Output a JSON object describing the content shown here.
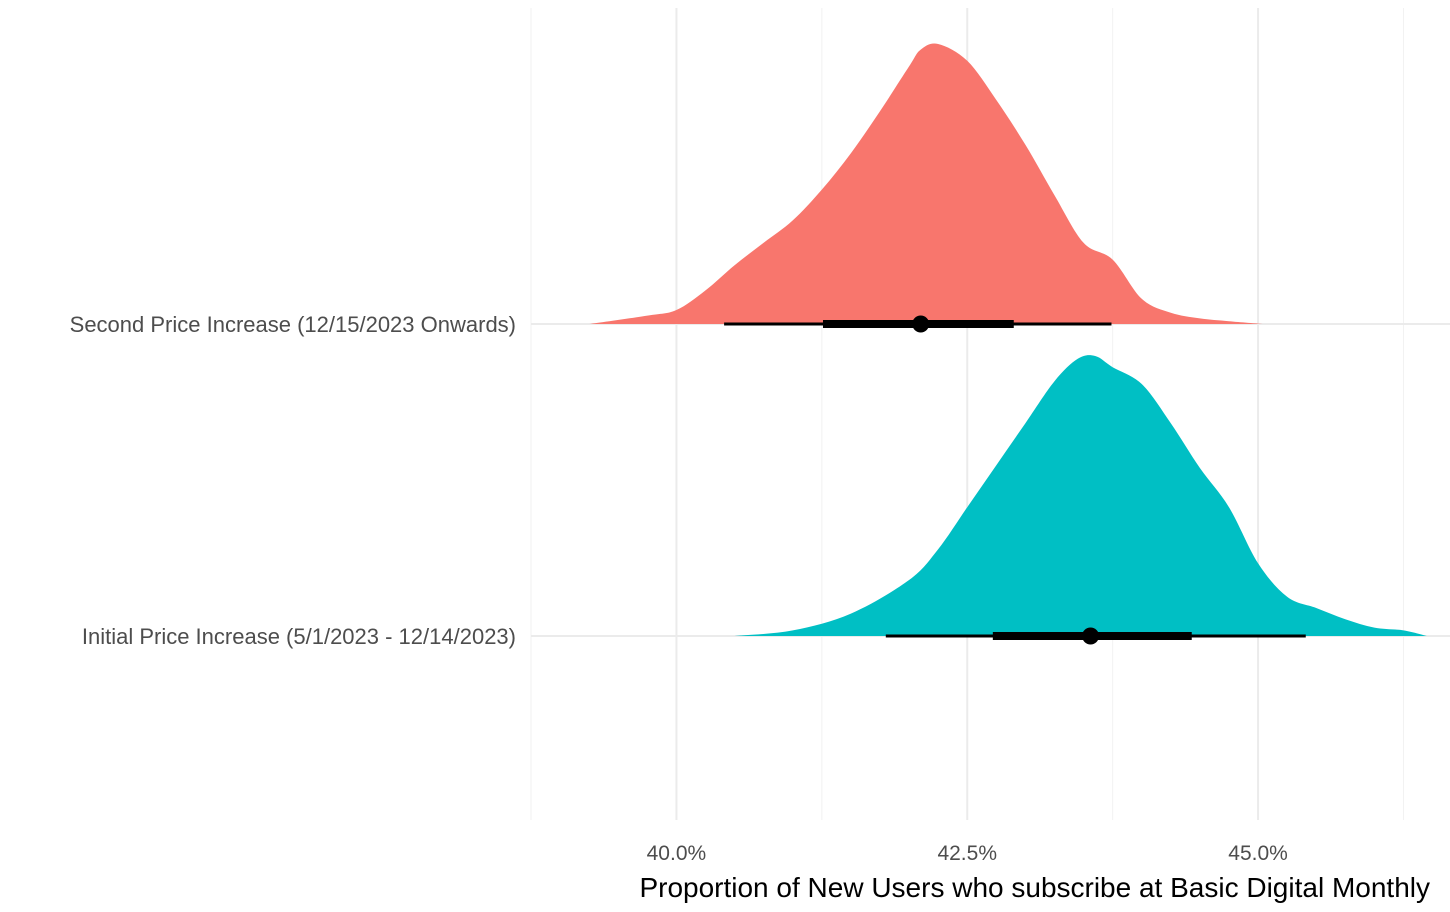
{
  "chart_data": {
    "type": "density",
    "xlabel": "Proportion of New Users who subscribe at Basic Digital Monthly",
    "ylabel": "",
    "xlim": [
      0.3875,
      0.4665
    ],
    "x_ticks": [
      0.4,
      0.425,
      0.45
    ],
    "x_tick_labels": [
      "40.0%",
      "42.5%",
      "45.0%"
    ],
    "x_minor_ticks": [
      0.3875,
      0.4125,
      0.4375,
      0.4625
    ],
    "grid": true,
    "legend": "none",
    "categories": [
      "Initial Price Increase (5/1/2023 - 12/14/2023)",
      "Second Price Increase (12/15/2023 Onwards)"
    ],
    "series": [
      {
        "category": "Second Price Increase (12/15/2023 Onwards)",
        "color": "#F8766D",
        "point": 0.421,
        "interval_66": [
          0.4126,
          0.429
        ],
        "interval_95": [
          0.4041,
          0.4374
        ],
        "density": [
          [
            0.3925,
            0.0
          ],
          [
            0.3975,
            0.03
          ],
          [
            0.4,
            0.05
          ],
          [
            0.4025,
            0.12
          ],
          [
            0.405,
            0.21
          ],
          [
            0.4075,
            0.29
          ],
          [
            0.41,
            0.37
          ],
          [
            0.4125,
            0.48
          ],
          [
            0.415,
            0.61
          ],
          [
            0.4175,
            0.76
          ],
          [
            0.42,
            0.92
          ],
          [
            0.421,
            0.98
          ],
          [
            0.4225,
            1.0
          ],
          [
            0.425,
            0.94
          ],
          [
            0.4275,
            0.8
          ],
          [
            0.43,
            0.64
          ],
          [
            0.4325,
            0.46
          ],
          [
            0.435,
            0.29
          ],
          [
            0.4375,
            0.23
          ],
          [
            0.44,
            0.09
          ],
          [
            0.4425,
            0.04
          ],
          [
            0.445,
            0.02
          ],
          [
            0.4475,
            0.01
          ],
          [
            0.4505,
            0.0
          ]
        ]
      },
      {
        "category": "Initial Price Increase (5/1/2023 - 12/14/2023)",
        "color": "#00BFC4",
        "point": 0.4356,
        "interval_66": [
          0.4272,
          0.4443
        ],
        "interval_95": [
          0.418,
          0.4541
        ],
        "density": [
          [
            0.405,
            0.0
          ],
          [
            0.41,
            0.02
          ],
          [
            0.415,
            0.08
          ],
          [
            0.42,
            0.2
          ],
          [
            0.4225,
            0.31
          ],
          [
            0.425,
            0.46
          ],
          [
            0.4275,
            0.61
          ],
          [
            0.43,
            0.76
          ],
          [
            0.4325,
            0.91
          ],
          [
            0.4345,
            0.99
          ],
          [
            0.436,
            1.0
          ],
          [
            0.4375,
            0.96
          ],
          [
            0.44,
            0.9
          ],
          [
            0.4425,
            0.76
          ],
          [
            0.445,
            0.6
          ],
          [
            0.4475,
            0.46
          ],
          [
            0.45,
            0.26
          ],
          [
            0.4525,
            0.14
          ],
          [
            0.455,
            0.1
          ],
          [
            0.4575,
            0.06
          ],
          [
            0.46,
            0.03
          ],
          [
            0.4625,
            0.02
          ],
          [
            0.4645,
            0.0
          ]
        ]
      }
    ]
  }
}
